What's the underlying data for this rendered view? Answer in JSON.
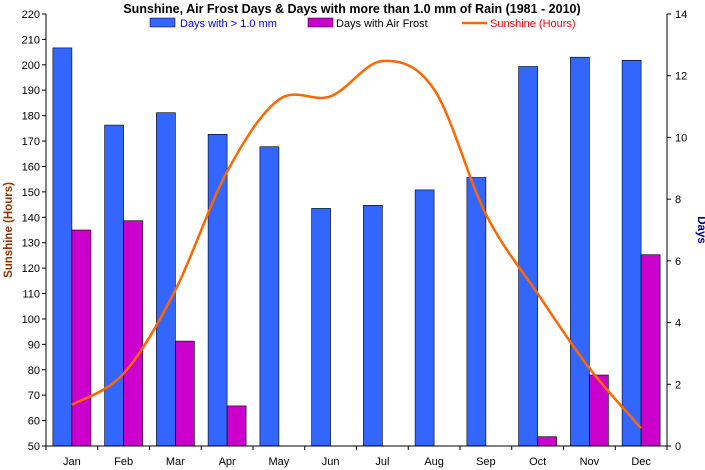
{
  "chart_data": {
    "type": "bar",
    "title": "Sunshine, Air Frost Days & Days with more than 1.0 mm of Rain (1981 - 2010)",
    "categories": [
      "Jan",
      "Feb",
      "Mar",
      "Apr",
      "May",
      "Jun",
      "Jul",
      "Aug",
      "Sep",
      "Oct",
      "Nov",
      "Dec"
    ],
    "ylabel_left": "Sunshine (Hours)",
    "ylabel_right": "Days",
    "ylim_left": [
      50,
      220
    ],
    "yticks_left": [
      50,
      60,
      70,
      80,
      90,
      100,
      110,
      120,
      130,
      140,
      150,
      160,
      170,
      180,
      190,
      200,
      210,
      220
    ],
    "ylim_right": [
      0,
      14
    ],
    "yticks_right": [
      0,
      2,
      4,
      6,
      8,
      10,
      12,
      14
    ],
    "legend_position": "top",
    "grid": false,
    "series": [
      {
        "name": "Days  with > 1.0 mm",
        "type": "bar",
        "axis": "right",
        "color": "#3366ff",
        "values": [
          12.9,
          10.4,
          10.8,
          10.1,
          9.7,
          7.7,
          7.8,
          8.3,
          8.7,
          12.3,
          12.6,
          12.5
        ]
      },
      {
        "name": "Days with Air Frost",
        "type": "bar",
        "axis": "right",
        "color": "#cc00cc",
        "values": [
          7.0,
          7.3,
          3.4,
          1.3,
          0,
          0,
          0,
          0,
          0,
          0.3,
          2.3,
          6.2
        ]
      },
      {
        "name": "Sunshine (Hours)",
        "type": "line",
        "axis": "left",
        "color": "#ff6600",
        "values": [
          66.2,
          78.5,
          111.4,
          158.0,
          186.3,
          187.6,
          201.5,
          190.3,
          141.2,
          110.0,
          80.6,
          57.0
        ]
      }
    ],
    "colors": {
      "left_axis_label": "#993300",
      "right_axis_label": "#000099",
      "legend_bar_text": "#0000ff",
      "legend_frost_text": "#000000",
      "legend_sun_text": "#ff0000",
      "bar_stroke": "#000000"
    }
  }
}
